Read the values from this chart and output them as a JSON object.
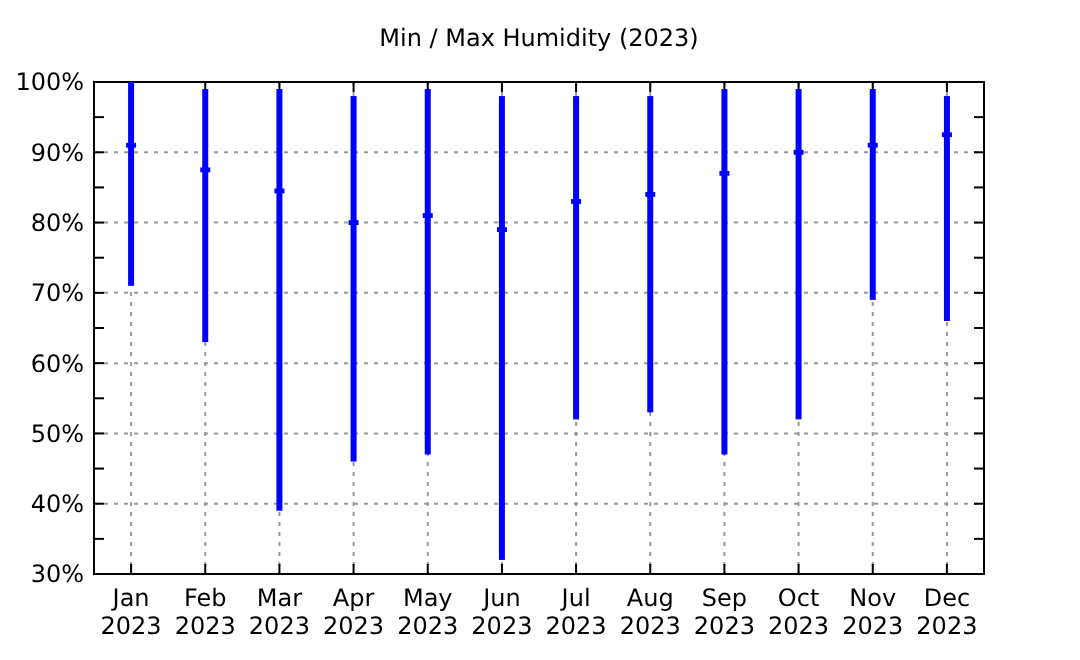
{
  "chart_data": {
    "type": "bar",
    "title": "Min / Max Humidity (2023)",
    "categories": [
      "Jan 2023",
      "Feb 2023",
      "Mar 2023",
      "Apr 2023",
      "May 2023",
      "Jun 2023",
      "Jul 2023",
      "Aug 2023",
      "Sep 2023",
      "Oct 2023",
      "Nov 2023",
      "Dec 2023"
    ],
    "series": [
      {
        "color": "#0000ff",
        "base": [
          71,
          63,
          39,
          46,
          47,
          32,
          52,
          53,
          47,
          52,
          69,
          66
        ],
        "values": [
          29,
          36,
          60,
          52,
          52,
          66,
          46,
          45,
          52,
          47,
          30,
          32
        ]
      },
      {
        "type": "scatter",
        "color": "#0000ff",
        "x": [
          "Jan 2023",
          "Feb 2023",
          "Mar 2023",
          "Apr 2023",
          "May 2023",
          "Jun 2023",
          "Jul 2023",
          "Aug 2023",
          "Sep 2023",
          "Oct 2023",
          "Nov 2023",
          "Dec 2023"
        ],
        "values": [
          91,
          87.5,
          84.5,
          80,
          81,
          79,
          83,
          84,
          87,
          90,
          91,
          92.5
        ]
      }
    ],
    "ylim": [
      30,
      100
    ],
    "yticks": [
      {
        "value": 30,
        "label": "30%"
      },
      {
        "value": 35,
        "label": null
      },
      {
        "value": 40,
        "label": "40%"
      },
      {
        "value": 45,
        "label": null
      },
      {
        "value": 50,
        "label": "50%"
      },
      {
        "value": 55,
        "label": null
      },
      {
        "value": 60,
        "label": "60%"
      },
      {
        "value": 65,
        "label": null
      },
      {
        "value": 70,
        "label": "70%"
      },
      {
        "value": 75,
        "label": null
      },
      {
        "value": 80,
        "label": "80%"
      },
      {
        "value": 85,
        "label": null
      },
      {
        "value": 90,
        "label": "90%"
      },
      {
        "value": 95,
        "label": null
      },
      {
        "value": 100,
        "label": "100%"
      }
    ],
    "grid": true
  }
}
